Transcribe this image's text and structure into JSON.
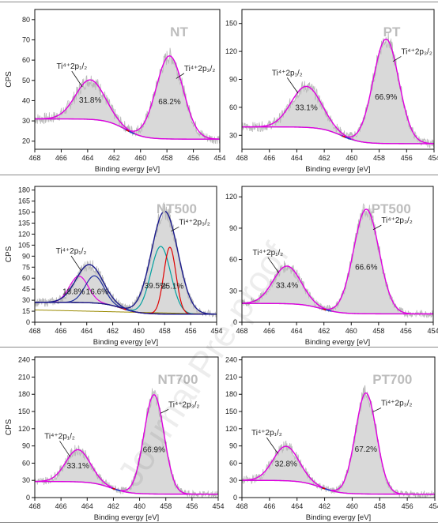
{
  "figure": {
    "watermark": "Journal Pre-proof",
    "colors": {
      "envelope": "#e000e0",
      "component_red": "#e00000",
      "component_teal": "#00a0a0",
      "fit_blue": "#1f2f9f",
      "fit_darkblue": "#1a1a8c",
      "background_teal": "#2b8a8a",
      "background_olive": "#9a8a00",
      "raw_data": "#b8b8b8",
      "fill": "#d9d9d9",
      "title": "#bdbdbd"
    }
  },
  "chart_data": [
    {
      "type": "line",
      "title": "NT",
      "xlabel": "Binding evergy [eV]",
      "ylabel": "CPS",
      "xlim": [
        468,
        454
      ],
      "ylim": [
        16,
        85
      ],
      "x_ticks": [
        "468",
        "466",
        "464",
        "462",
        "460",
        "458",
        "456",
        "454"
      ],
      "y_ticks": [
        20,
        30,
        40,
        50,
        60,
        70,
        80
      ],
      "peaks": [
        {
          "label": "Ti⁴⁺2p₁/₂",
          "center": 463.8,
          "fwhm": 2.6,
          "height": 19.5,
          "percent": "31.8%"
        },
        {
          "label": "Ti⁴⁺2p₃/₂",
          "center": 457.8,
          "fwhm": 2.4,
          "height": 41.0,
          "percent": "68.2%"
        }
      ],
      "background": {
        "start": 31,
        "end": 21
      }
    },
    {
      "type": "line",
      "title": "PT",
      "xlabel": "Binding evergy [eV]",
      "ylabel": "",
      "xlim": [
        468,
        454
      ],
      "ylim": [
        15,
        165
      ],
      "x_ticks": [
        "468",
        "466",
        "464",
        "462",
        "460",
        "458",
        "456",
        "454"
      ],
      "y_ticks": [
        30,
        60,
        90,
        120,
        150
      ],
      "peaks": [
        {
          "label": "Ti⁴⁺2p₁/₂",
          "center": 463.3,
          "fwhm": 2.6,
          "height": 44.0,
          "percent": "33.1%"
        },
        {
          "label": "Ti⁴⁺2p₃/₂",
          "center": 457.5,
          "fwhm": 2.2,
          "height": 112.0,
          "percent": "66.9%"
        }
      ],
      "background": {
        "start": 39,
        "end": 21
      }
    },
    {
      "type": "line",
      "title": "NT500",
      "xlabel": "Binding evergy [eV]",
      "ylabel": "CPS",
      "xlim": [
        468,
        454
      ],
      "ylim": [
        0,
        185
      ],
      "x_ticks": [
        "468",
        "466",
        "464",
        "462",
        "460",
        "458",
        "456",
        "454"
      ],
      "y_ticks": [
        0,
        15,
        30,
        45,
        60,
        75,
        90,
        105,
        120,
        135,
        150,
        165,
        180
      ],
      "peaks": [
        {
          "label": "Ti⁴⁺2p₁/₂",
          "center": 463.8,
          "fwhm": 2.4,
          "height": 52.0,
          "percent": ""
        },
        {
          "label": "Ti⁴⁺2p₃/₂",
          "center": 458.0,
          "fwhm": 2.4,
          "height": 140.0,
          "percent": ""
        }
      ],
      "components": [
        {
          "center": 464.6,
          "fwhm": 1.7,
          "height": 36.0,
          "percent": "18.8%",
          "color": "envelope"
        },
        {
          "center": 463.4,
          "fwhm": 1.7,
          "height": 37.0,
          "percent": "16.6%",
          "color": "fit_blue"
        },
        {
          "center": 458.3,
          "fwhm": 1.8,
          "height": 92.0,
          "percent": "39.5%",
          "color": "component_teal"
        },
        {
          "center": 457.6,
          "fwhm": 1.1,
          "height": 91.0,
          "percent": "25.1%",
          "color": "component_red"
        }
      ],
      "background": {
        "start": 27,
        "end": 11
      }
    },
    {
      "type": "line",
      "title": "PT500",
      "xlabel": "Binding evergy [eV]",
      "ylabel": "",
      "xlim": [
        468,
        454
      ],
      "ylim": [
        0,
        130
      ],
      "x_ticks": [
        "468",
        "466",
        "464",
        "462",
        "460",
        "458",
        "456",
        "454"
      ],
      "y_ticks": [
        0,
        30,
        60,
        90,
        120
      ],
      "peaks": [
        {
          "label": "Ti⁴⁺2p₁/₂",
          "center": 464.7,
          "fwhm": 2.4,
          "height": 36.0,
          "percent": "33.4%"
        },
        {
          "label": "Ti⁴⁺2p₃/₂",
          "center": 458.9,
          "fwhm": 2.2,
          "height": 100.0,
          "percent": "66.6%"
        }
      ],
      "background": {
        "start": 18,
        "end": 8
      }
    },
    {
      "type": "line",
      "title": "NT700",
      "xlabel": "Binding evergy [eV]",
      "ylabel": "CPS",
      "xlim": [
        468,
        454
      ],
      "ylim": [
        0,
        245
      ],
      "x_ticks": [
        "468",
        "466",
        "464",
        "462",
        "460",
        "458",
        "456",
        "454"
      ],
      "y_ticks": [
        0,
        30,
        60,
        90,
        120,
        150,
        180,
        210,
        240
      ],
      "peaks": [
        {
          "label": "Ti⁴⁺2p₁/₂",
          "center": 464.7,
          "fwhm": 2.2,
          "height": 56.0,
          "percent": "33.1%"
        },
        {
          "label": "Ti⁴⁺2p₃/₂",
          "center": 458.9,
          "fwhm": 1.8,
          "height": 173.0,
          "percent": "66.9%"
        }
      ],
      "background": {
        "start": 28,
        "end": 6
      }
    },
    {
      "type": "line",
      "title": "PT700",
      "xlabel": "Binding evergy [eV]",
      "ylabel": "",
      "xlim": [
        468,
        454
      ],
      "ylim": [
        0,
        245
      ],
      "x_ticks": [
        "468",
        "466",
        "464",
        "462",
        "460",
        "458",
        "456",
        "454"
      ],
      "y_ticks": [
        0,
        30,
        60,
        90,
        120,
        150,
        180,
        210,
        240
      ],
      "peaks": [
        {
          "label": "Ti⁴⁺2p₁/₂",
          "center": 464.8,
          "fwhm": 2.2,
          "height": 60.0,
          "percent": "32.8%"
        },
        {
          "label": "Ti⁴⁺2p₃/₂",
          "center": 459.0,
          "fwhm": 1.8,
          "height": 176.0,
          "percent": "67.2%"
        }
      ],
      "background": {
        "start": 30,
        "end": 6
      }
    }
  ]
}
